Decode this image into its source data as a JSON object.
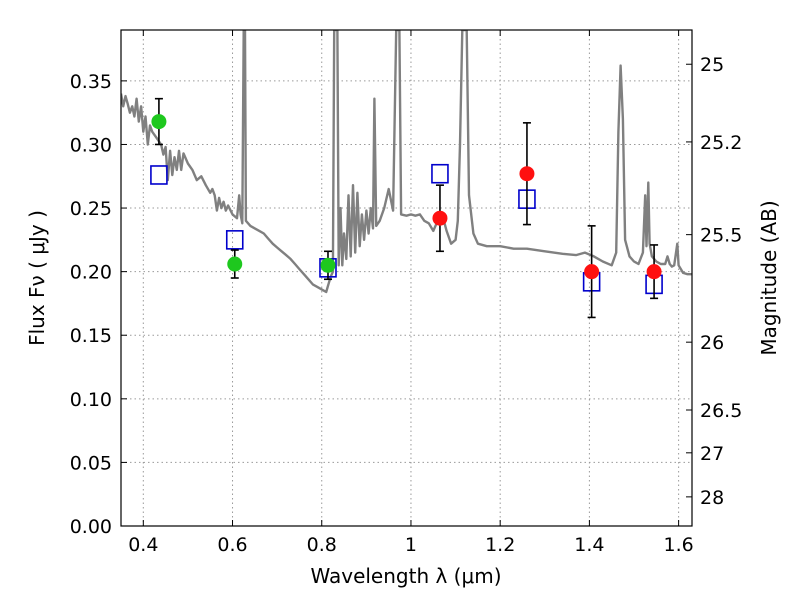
{
  "chart_data": {
    "type": "scatter",
    "title": "",
    "xlabel": "Wavelength  λ (μm)",
    "ylabel": "Flux  Fν  ( μJy )",
    "y2label": "Magnitude (AB)",
    "xlim": [
      0.35,
      1.63
    ],
    "ylim": [
      0.0,
      0.39
    ],
    "x_ticks": [
      {
        "value": 0.4,
        "label": "0.4"
      },
      {
        "value": 0.6,
        "label": "0.6"
      },
      {
        "value": 0.8,
        "label": "0.8"
      },
      {
        "value": 1.0,
        "label": "1"
      },
      {
        "value": 1.2,
        "label": "1.2"
      },
      {
        "value": 1.4,
        "label": "1.4"
      },
      {
        "value": 1.6,
        "label": "1.6"
      }
    ],
    "y_ticks": [
      {
        "value": 0.0,
        "label": "0.00"
      },
      {
        "value": 0.05,
        "label": "0.05"
      },
      {
        "value": 0.1,
        "label": "0.10"
      },
      {
        "value": 0.15,
        "label": "0.15"
      },
      {
        "value": 0.2,
        "label": "0.20"
      },
      {
        "value": 0.25,
        "label": "0.25"
      },
      {
        "value": 0.3,
        "label": "0.30"
      },
      {
        "value": 0.35,
        "label": "0.35"
      }
    ],
    "y2_ticks": [
      {
        "value": 25,
        "label": "25"
      },
      {
        "value": 25.2,
        "label": "25.2"
      },
      {
        "value": 25.5,
        "label": "25.5"
      },
      {
        "value": 26,
        "label": "26"
      },
      {
        "value": 26.5,
        "label": "26.5"
      },
      {
        "value": 27,
        "label": "27"
      },
      {
        "value": 28,
        "label": "28"
      }
    ],
    "grid": true,
    "colors": {
      "model": "#808080",
      "green": "#1ec81e",
      "red": "#ff1010",
      "square": "#0000cc",
      "errorbar": "#000000",
      "grid": "#9a9a9a"
    },
    "series": [
      {
        "kind": "model-spectrum",
        "points": [
          [
            0.35,
            0.34
          ],
          [
            0.355,
            0.33
          ],
          [
            0.36,
            0.338
          ],
          [
            0.365,
            0.332
          ],
          [
            0.37,
            0.325
          ],
          [
            0.375,
            0.33
          ],
          [
            0.38,
            0.322
          ],
          [
            0.385,
            0.336
          ],
          [
            0.39,
            0.318
          ],
          [
            0.395,
            0.33
          ],
          [
            0.4,
            0.31
          ],
          [
            0.405,
            0.322
          ],
          [
            0.41,
            0.3
          ],
          [
            0.415,
            0.315
          ],
          [
            0.42,
            0.31
          ],
          [
            0.43,
            0.305
          ],
          [
            0.44,
            0.3
          ],
          [
            0.445,
            0.292
          ],
          [
            0.45,
            0.298
          ],
          [
            0.455,
            0.272
          ],
          [
            0.46,
            0.295
          ],
          [
            0.465,
            0.276
          ],
          [
            0.47,
            0.29
          ],
          [
            0.475,
            0.28
          ],
          [
            0.48,
            0.295
          ],
          [
            0.485,
            0.28
          ],
          [
            0.49,
            0.293
          ],
          [
            0.5,
            0.285
          ],
          [
            0.51,
            0.28
          ],
          [
            0.52,
            0.272
          ],
          [
            0.53,
            0.275
          ],
          [
            0.54,
            0.268
          ],
          [
            0.55,
            0.262
          ],
          [
            0.555,
            0.265
          ],
          [
            0.56,
            0.26
          ],
          [
            0.565,
            0.248
          ],
          [
            0.57,
            0.258
          ],
          [
            0.575,
            0.25
          ],
          [
            0.58,
            0.255
          ],
          [
            0.585,
            0.248
          ],
          [
            0.59,
            0.252
          ],
          [
            0.6,
            0.245
          ],
          [
            0.61,
            0.242
          ],
          [
            0.615,
            0.26
          ],
          [
            0.618,
            0.245
          ],
          [
            0.622,
            0.238
          ],
          [
            0.625,
            0.39
          ],
          [
            0.628,
            0.39
          ],
          [
            0.63,
            0.24
          ],
          [
            0.64,
            0.236
          ],
          [
            0.65,
            0.234
          ],
          [
            0.66,
            0.232
          ],
          [
            0.67,
            0.23
          ],
          [
            0.68,
            0.226
          ],
          [
            0.69,
            0.222
          ],
          [
            0.7,
            0.219
          ],
          [
            0.71,
            0.216
          ],
          [
            0.72,
            0.213
          ],
          [
            0.73,
            0.21
          ],
          [
            0.74,
            0.206
          ],
          [
            0.75,
            0.202
          ],
          [
            0.76,
            0.198
          ],
          [
            0.77,
            0.194
          ],
          [
            0.78,
            0.19
          ],
          [
            0.79,
            0.188
          ],
          [
            0.8,
            0.186
          ],
          [
            0.81,
            0.184
          ],
          [
            0.815,
            0.19
          ],
          [
            0.82,
            0.196
          ],
          [
            0.825,
            0.2
          ],
          [
            0.828,
            0.39
          ],
          [
            0.835,
            0.39
          ],
          [
            0.838,
            0.205
          ],
          [
            0.842,
            0.25
          ],
          [
            0.846,
            0.205
          ],
          [
            0.85,
            0.23
          ],
          [
            0.855,
            0.21
          ],
          [
            0.86,
            0.26
          ],
          [
            0.865,
            0.212
          ],
          [
            0.87,
            0.268
          ],
          [
            0.875,
            0.215
          ],
          [
            0.88,
            0.262
          ],
          [
            0.885,
            0.22
          ],
          [
            0.89,
            0.245
          ],
          [
            0.895,
            0.225
          ],
          [
            0.9,
            0.248
          ],
          [
            0.905,
            0.23
          ],
          [
            0.91,
            0.25
          ],
          [
            0.915,
            0.234
          ],
          [
            0.918,
            0.336
          ],
          [
            0.922,
            0.236
          ],
          [
            0.93,
            0.24
          ],
          [
            0.94,
            0.25
          ],
          [
            0.95,
            0.265
          ],
          [
            0.96,
            0.248
          ],
          [
            0.967,
            0.39
          ],
          [
            0.974,
            0.39
          ],
          [
            0.978,
            0.245
          ],
          [
            0.99,
            0.244
          ],
          [
            1.0,
            0.245
          ],
          [
            1.01,
            0.244
          ],
          [
            1.02,
            0.245
          ],
          [
            1.03,
            0.24
          ],
          [
            1.04,
            0.238
          ],
          [
            1.05,
            0.232
          ],
          [
            1.06,
            0.24
          ],
          [
            1.07,
            0.245
          ],
          [
            1.08,
            0.232
          ],
          [
            1.09,
            0.222
          ],
          [
            1.1,
            0.225
          ],
          [
            1.105,
            0.24
          ],
          [
            1.11,
            0.3
          ],
          [
            1.115,
            0.39
          ],
          [
            1.125,
            0.39
          ],
          [
            1.13,
            0.26
          ],
          [
            1.14,
            0.23
          ],
          [
            1.15,
            0.222
          ],
          [
            1.17,
            0.22
          ],
          [
            1.2,
            0.22
          ],
          [
            1.23,
            0.218
          ],
          [
            1.26,
            0.218
          ],
          [
            1.3,
            0.216
          ],
          [
            1.34,
            0.214
          ],
          [
            1.37,
            0.213
          ],
          [
            1.39,
            0.215
          ],
          [
            1.41,
            0.212
          ],
          [
            1.43,
            0.208
          ],
          [
            1.45,
            0.205
          ],
          [
            1.46,
            0.215
          ],
          [
            1.465,
            0.31
          ],
          [
            1.47,
            0.362
          ],
          [
            1.475,
            0.32
          ],
          [
            1.48,
            0.225
          ],
          [
            1.49,
            0.212
          ],
          [
            1.5,
            0.208
          ],
          [
            1.51,
            0.206
          ],
          [
            1.52,
            0.215
          ],
          [
            1.525,
            0.26
          ],
          [
            1.528,
            0.22
          ],
          [
            1.532,
            0.27
          ],
          [
            1.535,
            0.222
          ],
          [
            1.54,
            0.212
          ],
          [
            1.55,
            0.208
          ],
          [
            1.56,
            0.206
          ],
          [
            1.57,
            0.206
          ],
          [
            1.575,
            0.212
          ],
          [
            1.58,
            0.206
          ],
          [
            1.585,
            0.204
          ],
          [
            1.59,
            0.205
          ],
          [
            1.597,
            0.222
          ],
          [
            1.6,
            0.205
          ],
          [
            1.61,
            0.199
          ],
          [
            1.62,
            0.198
          ],
          [
            1.63,
            0.198
          ]
        ]
      },
      {
        "kind": "observed-green",
        "points": [
          {
            "x": 0.435,
            "y": 0.318,
            "err": 0.018
          },
          {
            "x": 0.605,
            "y": 0.206,
            "err": 0.011
          },
          {
            "x": 0.814,
            "y": 0.205,
            "err": 0.011
          }
        ]
      },
      {
        "kind": "observed-red",
        "points": [
          {
            "x": 1.065,
            "y": 0.242,
            "err": 0.026
          },
          {
            "x": 1.26,
            "y": 0.277,
            "err": 0.04
          },
          {
            "x": 1.405,
            "y": 0.2,
            "err": 0.036
          },
          {
            "x": 1.545,
            "y": 0.2,
            "err": 0.021
          }
        ]
      },
      {
        "kind": "model-photometry",
        "points": [
          {
            "x": 0.435,
            "y": 0.276
          },
          {
            "x": 0.605,
            "y": 0.225
          },
          {
            "x": 0.814,
            "y": 0.203
          },
          {
            "x": 1.065,
            "y": 0.277
          },
          {
            "x": 1.26,
            "y": 0.257
          },
          {
            "x": 1.405,
            "y": 0.192
          },
          {
            "x": 1.545,
            "y": 0.19
          }
        ]
      }
    ]
  }
}
